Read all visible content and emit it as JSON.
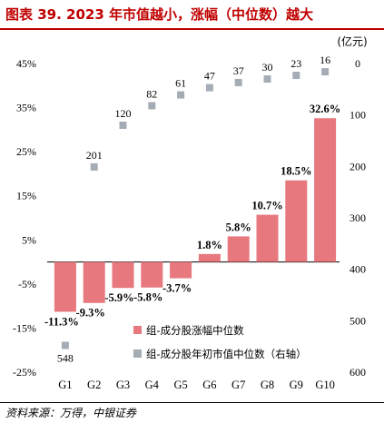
{
  "title": "图表 39. 2023 年市值越小，涨幅（中位数）越大",
  "source": "资料来源：万得，中银证券",
  "chart_data": {
    "type": "bar",
    "categories": [
      "G1",
      "G2",
      "G3",
      "G4",
      "G5",
      "G6",
      "G7",
      "G8",
      "G9",
      "G10"
    ],
    "series": [
      {
        "name": "组-成分股涨幅中位数",
        "type": "bar",
        "axis": "left",
        "color": "#e6787e",
        "values": [
          -11.3,
          -9.3,
          -5.9,
          -5.8,
          -3.7,
          1.8,
          5.8,
          10.7,
          18.5,
          32.6
        ],
        "labels": [
          "-11.3%",
          "-9.3%",
          "-5.9%",
          "-5.8%",
          "-3.7%",
          "1.8%",
          "5.8%",
          "10.7%",
          "18.5%",
          "32.6%"
        ]
      },
      {
        "name": "组-成分股年初市值中位数（右轴）",
        "type": "scatter",
        "axis": "right",
        "color": "#a4acb6",
        "values": [
          548,
          201,
          120,
          82,
          61,
          47,
          37,
          30,
          23,
          16
        ],
        "labels": [
          "548",
          "201",
          "120",
          "82",
          "61",
          "47",
          "37",
          "30",
          "23",
          "16"
        ]
      }
    ],
    "left_axis": {
      "min": -25,
      "max": 45,
      "step": 10,
      "ticks": [
        "45%",
        "35%",
        "25%",
        "15%",
        "5%",
        "-5%",
        "-15%",
        "-25%"
      ]
    },
    "right_axis": {
      "unit": "(亿元)",
      "min": 0,
      "max": 600,
      "step": 100,
      "reversed": true,
      "ticks": [
        "0",
        "100",
        "200",
        "300",
        "400",
        "500",
        "600"
      ]
    },
    "legend_position": "bottom-right",
    "grid": false
  }
}
